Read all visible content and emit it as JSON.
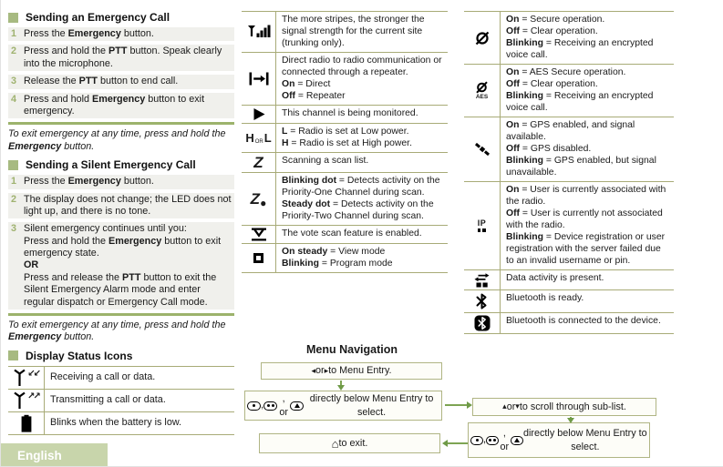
{
  "page": {
    "language_label": "English"
  },
  "colors": {
    "accent_olive": "#9cb36c",
    "table_border": "#a8ab77",
    "section_bullet": "#a7ba81",
    "step_background": "#f0f0ec",
    "step_number": "#9fb26f",
    "banner_background": "#c8d5ab",
    "flow_arrow": "#7da453",
    "flow_box_border": "#b0b584",
    "flow_box_background": "#fdfdf8"
  },
  "left_column": {
    "emergency_call": {
      "title": "Sending an Emergency Call",
      "steps": [
        {
          "num": "1",
          "text": "Press the **Emergency** button."
        },
        {
          "num": "2",
          "text": "Press and hold the **PTT** button. Speak clearly into the microphone."
        },
        {
          "num": "3",
          "text": "Release the **PTT** button to end call."
        },
        {
          "num": "4",
          "text": "Press and hold **Emergency** button to exit emergency."
        }
      ],
      "note": "To exit emergency at any time, press and hold the **Emergency** button."
    },
    "silent_emergency_call": {
      "title": "Sending a Silent Emergency Call",
      "steps": [
        {
          "num": "1",
          "text": "Press the **Emergency** button."
        },
        {
          "num": "2",
          "text": "The display does not change; the LED does not light up, and there is no tone."
        },
        {
          "num": "3",
          "text": "Silent emergency continues until you:\nPress and hold the **Emergency** button to exit emergency state.\n**OR**\nPress and release the **PTT** button to exit the Silent Emergency Alarm mode and enter regular dispatch or Emergency Call mode."
        }
      ],
      "note": "To exit emergency at any time, press and hold the **Emergency** button."
    },
    "display_status_icons": {
      "title": "Display Status Icons",
      "rows": [
        {
          "icon": "receiving-icon",
          "text": "Receiving a call or data."
        },
        {
          "icon": "transmitting-icon",
          "text": "Transmitting a call or data."
        },
        {
          "icon": "battery-icon",
          "text": "Blinks when the battery is low."
        }
      ]
    }
  },
  "middle_table": {
    "rows": [
      {
        "icon": "signal-strength-icon",
        "text": "The more stripes, the stronger the signal strength for the current site (trunking only)."
      },
      {
        "icon": "direct-mode-icon",
        "text": "Direct radio to radio communication or connected through a repeater.\n**On** = Direct\n**Off** = Repeater"
      },
      {
        "icon": "monitor-icon",
        "text": "This channel is being monitored."
      },
      {
        "icon": "power-level-icon",
        "text": "**L** = Radio is set at Low power.\n**H** = Radio is set at High power."
      },
      {
        "icon": "scan-icon",
        "text": "Scanning a scan list."
      },
      {
        "icon": "priority-scan-icon",
        "text": "**Blinking dot** = Detects activity on the Priority-One Channel during scan.\n**Steady dot** = Detects activity on the Priority-Two Channel during scan."
      },
      {
        "icon": "vote-scan-icon",
        "text": "The vote scan feature is enabled."
      },
      {
        "icon": "view-program-icon",
        "text": "**On steady** = View mode\n**Blinking** = Program mode"
      }
    ]
  },
  "right_table": {
    "rows": [
      {
        "icon": "secure-icon",
        "text": "**On** = Secure operation.\n**Off** = Clear operation.\n**Blinking** = Receiving an encrypted voice call."
      },
      {
        "icon": "aes-secure-icon",
        "text": "**On** = AES Secure operation.\n**Off** = Clear operation.\n**Blinking** = Receiving an encrypted voice call."
      },
      {
        "icon": "gps-icon",
        "text": "**On** = GPS enabled, and signal available.\n**Off** = GPS disabled.\n**Blinking** = GPS enabled, but signal unavailable."
      },
      {
        "icon": "ip-user-icon",
        "text": "**On** = User is currently associated with the radio.\n**Off** = User is currently not associated with the radio.\n**Blinking** = Device registration or user registration with the server failed due to an invalid username or pin."
      },
      {
        "icon": "data-activity-icon",
        "text": "Data activity is present."
      },
      {
        "icon": "bluetooth-ready-icon",
        "text": "Bluetooth is ready."
      },
      {
        "icon": "bluetooth-connected-icon",
        "text": "Bluetooth is connected to the device."
      }
    ]
  },
  "menu_navigation": {
    "title": "Menu Navigation",
    "boxes": [
      {
        "text": "{left} or {right} to Menu Entry."
      },
      {
        "text": "{btn1}, {btn2}, or {btn3} directly below Menu Entry to select."
      },
      {
        "text": "{home} to exit."
      },
      {
        "text": "{up} or {down} to scroll through sub-list."
      },
      {
        "text": "{btn1}, {btn2}, or {btn3} directly below Menu Entry to select."
      }
    ]
  }
}
